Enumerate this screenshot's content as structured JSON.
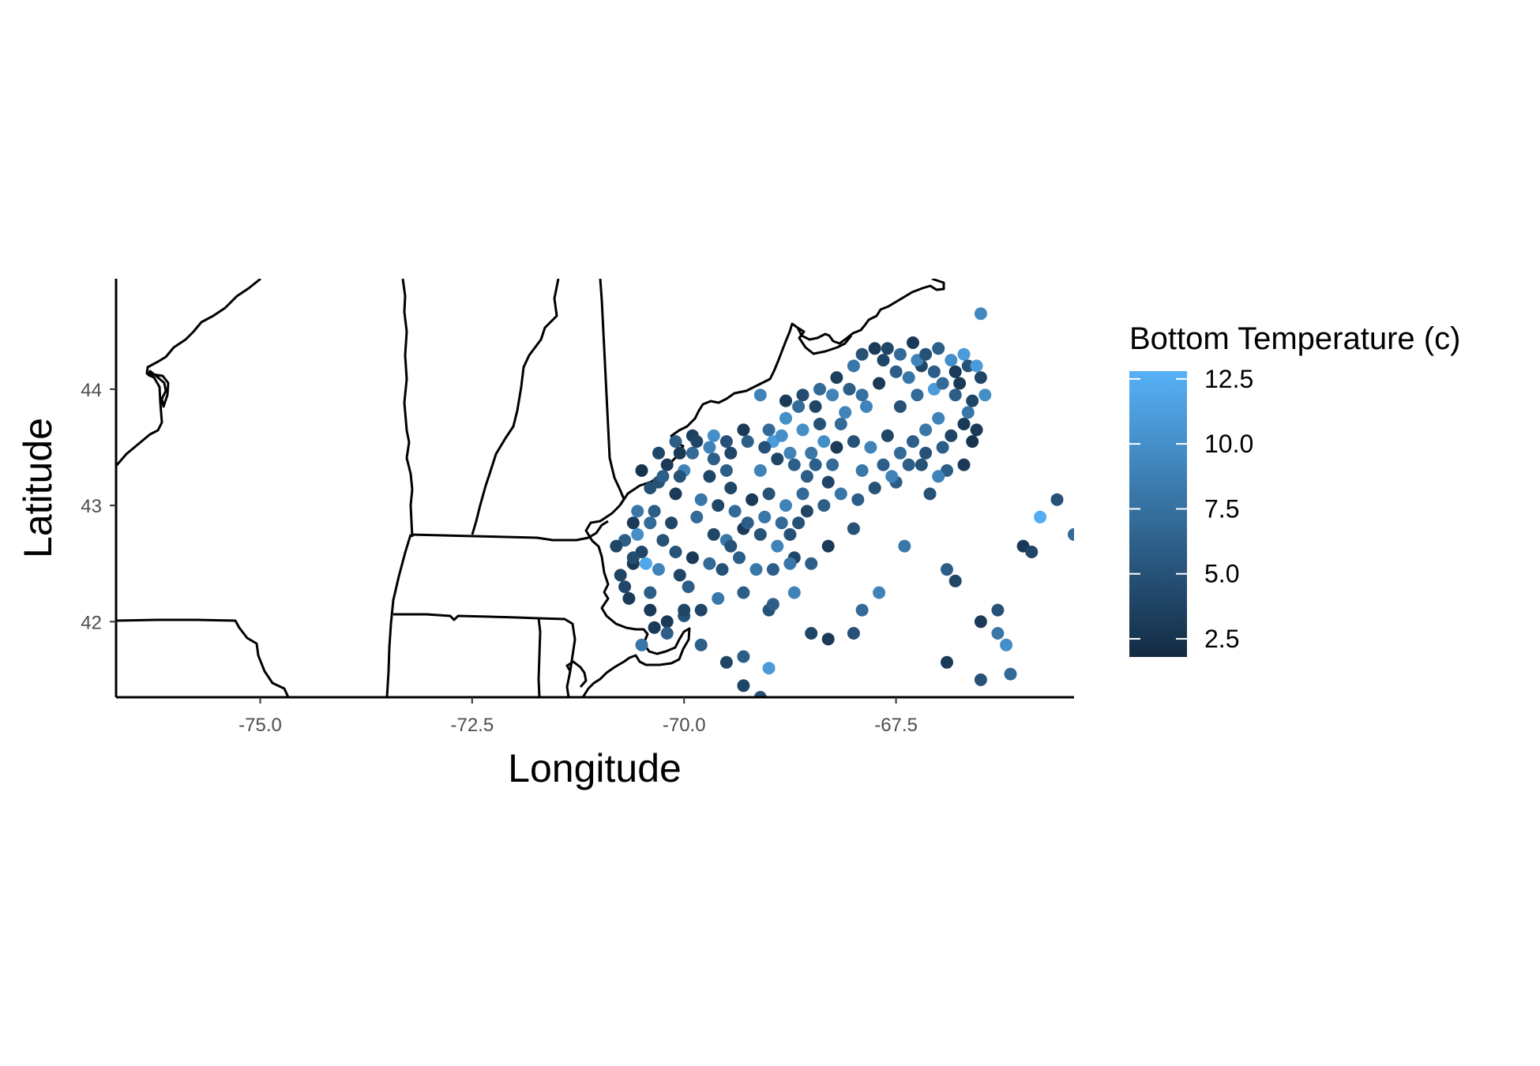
{
  "chart_data": {
    "type": "scatter",
    "xlabel": "Longitude",
    "ylabel": "Latitude",
    "xlim": [
      -76.7,
      -65.4
    ],
    "ylim": [
      41.35,
      44.95
    ],
    "x_ticks": [
      -75.0,
      -72.5,
      -70.0,
      -67.5
    ],
    "x_tick_labels": [
      "-75.0",
      "-72.5",
      "-70.0",
      "-67.5"
    ],
    "y_ticks": [
      42,
      43,
      44
    ],
    "y_tick_labels": [
      "42",
      "43",
      "44"
    ],
    "grid": false,
    "legend": {
      "position": "right",
      "title": "Bottom Temperature (c)",
      "min": 1.8,
      "max": 12.8,
      "breaks": [
        2.5,
        5.0,
        7.5,
        10.0,
        12.5
      ],
      "break_labels": [
        "2.5",
        "5.0",
        "7.5",
        "10.0",
        "12.5"
      ],
      "low_color": "#132B43",
      "high_color": "#56B1F7"
    },
    "points": [
      [
        -66.5,
        44.65,
        9.5
      ],
      [
        -67.6,
        44.35,
        4
      ],
      [
        -67.3,
        44.4,
        3
      ],
      [
        -67.0,
        44.35,
        6
      ],
      [
        -66.7,
        44.3,
        11
      ],
      [
        -66.5,
        44.1,
        4
      ],
      [
        -66.8,
        44.15,
        3
      ],
      [
        -67.9,
        44.3,
        5
      ],
      [
        -68.0,
        44.2,
        8
      ],
      [
        -68.2,
        44.1,
        3.5
      ],
      [
        -68.4,
        44.0,
        7
      ],
      [
        -68.6,
        43.95,
        4.5
      ],
      [
        -68.8,
        43.9,
        3
      ],
      [
        -69.1,
        43.95,
        9
      ],
      [
        -67.2,
        44.2,
        4
      ],
      [
        -67.5,
        44.15,
        6
      ],
      [
        -67.7,
        44.05,
        3
      ],
      [
        -67.9,
        43.95,
        7.5
      ],
      [
        -68.1,
        43.8,
        9
      ],
      [
        -68.4,
        43.7,
        5
      ],
      [
        -68.6,
        43.65,
        10
      ],
      [
        -66.6,
        43.9,
        4
      ],
      [
        -66.8,
        43.95,
        6
      ],
      [
        -67.0,
        43.75,
        9
      ],
      [
        -66.7,
        43.7,
        3
      ],
      [
        -66.6,
        43.55,
        2.5
      ],
      [
        -67.3,
        43.55,
        6
      ],
      [
        -67.6,
        43.6,
        4
      ],
      [
        -67.8,
        43.5,
        9
      ],
      [
        -68.0,
        43.55,
        5
      ],
      [
        -68.2,
        43.5,
        3
      ],
      [
        -68.5,
        43.45,
        8
      ],
      [
        -68.7,
        43.35,
        6
      ],
      [
        -68.9,
        43.4,
        4
      ],
      [
        -69.1,
        43.3,
        9
      ],
      [
        -66.9,
        43.3,
        6
      ],
      [
        -66.7,
        43.35,
        3
      ],
      [
        -67.0,
        43.25,
        9
      ],
      [
        -67.2,
        43.35,
        5
      ],
      [
        -67.5,
        43.2,
        6
      ],
      [
        -67.9,
        43.3,
        8
      ],
      [
        -68.3,
        43.2,
        4
      ],
      [
        -68.6,
        43.1,
        7
      ],
      [
        -68.8,
        43.0,
        9
      ],
      [
        -69.0,
        43.1,
        5
      ],
      [
        -69.2,
        43.05,
        3
      ],
      [
        -69.4,
        42.95,
        7
      ],
      [
        -69.6,
        43.0,
        4
      ],
      [
        -69.8,
        43.05,
        8
      ],
      [
        -70.1,
        43.1,
        3
      ],
      [
        -70.3,
        43.2,
        5
      ],
      [
        -70.5,
        43.3,
        2.5
      ],
      [
        -70.3,
        43.45,
        4
      ],
      [
        -70.1,
        43.55,
        6
      ],
      [
        -69.9,
        43.6,
        3.5
      ],
      [
        -69.7,
        43.5,
        9
      ],
      [
        -69.5,
        43.55,
        5
      ],
      [
        -69.3,
        43.65,
        3
      ],
      [
        -69.0,
        43.65,
        7
      ],
      [
        -68.8,
        43.75,
        10
      ],
      [
        -69.5,
        43.3,
        6
      ],
      [
        -69.7,
        43.25,
        4
      ],
      [
        -70.0,
        43.3,
        9
      ],
      [
        -70.2,
        43.35,
        3
      ],
      [
        -70.4,
        43.15,
        5
      ],
      [
        -70.6,
        42.85,
        3
      ],
      [
        -70.7,
        42.7,
        6
      ],
      [
        -70.5,
        42.6,
        4
      ],
      [
        -70.3,
        42.45,
        9
      ],
      [
        -70.1,
        42.6,
        5
      ],
      [
        -69.9,
        42.55,
        3
      ],
      [
        -69.7,
        42.5,
        7
      ],
      [
        -69.5,
        42.7,
        8
      ],
      [
        -69.3,
        42.8,
        3
      ],
      [
        -69.1,
        42.75,
        5
      ],
      [
        -68.9,
        42.65,
        9
      ],
      [
        -68.7,
        42.55,
        4
      ],
      [
        -68.5,
        42.5,
        6
      ],
      [
        -68.3,
        42.65,
        3
      ],
      [
        -68.0,
        42.8,
        5
      ],
      [
        -70.4,
        42.85,
        7
      ],
      [
        -70.6,
        42.5,
        3
      ],
      [
        -70.7,
        42.3,
        4
      ],
      [
        -70.4,
        42.25,
        6
      ],
      [
        -70.2,
        42.0,
        3
      ],
      [
        -70.0,
        42.05,
        5
      ],
      [
        -69.8,
        42.1,
        4
      ],
      [
        -69.6,
        42.2,
        8
      ],
      [
        -69.3,
        42.25,
        6
      ],
      [
        -69.0,
        42.1,
        5
      ],
      [
        -68.7,
        42.25,
        9
      ],
      [
        -68.5,
        41.9,
        4
      ],
      [
        -68.3,
        41.85,
        3
      ],
      [
        -68.0,
        41.9,
        5
      ],
      [
        -67.9,
        42.1,
        7
      ],
      [
        -67.7,
        42.25,
        9
      ],
      [
        -67.4,
        42.65,
        8
      ],
      [
        -67.1,
        43.1,
        5
      ],
      [
        -66.9,
        42.45,
        6
      ],
      [
        -66.8,
        42.35,
        4
      ],
      [
        -66.5,
        42.0,
        3
      ],
      [
        -66.3,
        42.1,
        5
      ],
      [
        -66.3,
        41.9,
        8
      ],
      [
        -66.2,
        41.8,
        10
      ],
      [
        -66.15,
        41.55,
        7
      ],
      [
        -66.5,
        41.5,
        5
      ],
      [
        -66.9,
        41.65,
        3
      ],
      [
        -66.0,
        42.65,
        3
      ],
      [
        -65.9,
        42.6,
        4
      ],
      [
        -65.8,
        42.9,
        12.5
      ],
      [
        -65.6,
        43.05,
        5
      ],
      [
        -65.4,
        42.75,
        7
      ],
      [
        -69.8,
        41.8,
        6
      ],
      [
        -69.5,
        41.65,
        4
      ],
      [
        -69.3,
        41.7,
        6
      ],
      [
        -69.0,
        41.6,
        11
      ],
      [
        -69.3,
        41.45,
        4
      ],
      [
        -69.1,
        41.35,
        5
      ],
      [
        -70.5,
        41.8,
        8
      ],
      [
        -70.2,
        41.9,
        6
      ],
      [
        -70.8,
        42.65,
        4
      ],
      [
        -70.55,
        42.75,
        10
      ],
      [
        -70.6,
        42.55,
        4.5
      ],
      [
        -70.4,
        42.1,
        3
      ],
      [
        -70.0,
        42.1,
        4
      ],
      [
        -69.9,
        43.45,
        7
      ],
      [
        -70.05,
        43.25,
        5
      ],
      [
        -69.65,
        43.4,
        6
      ],
      [
        -69.45,
        43.15,
        4
      ],
      [
        -68.95,
        43.55,
        11
      ],
      [
        -68.75,
        43.45,
        9
      ],
      [
        -68.55,
        43.25,
        6
      ],
      [
        -68.35,
        43.55,
        10
      ],
      [
        -68.15,
        43.7,
        7
      ],
      [
        -67.85,
        43.85,
        9
      ],
      [
        -67.45,
        43.85,
        5
      ],
      [
        -67.25,
        43.95,
        7
      ],
      [
        -67.05,
        44.0,
        11
      ],
      [
        -66.75,
        44.05,
        3
      ],
      [
        -66.45,
        43.95,
        10
      ],
      [
        -66.85,
        43.6,
        4
      ],
      [
        -67.15,
        43.65,
        8
      ],
      [
        -67.45,
        43.45,
        7
      ],
      [
        -67.65,
        43.35,
        6
      ],
      [
        -68.25,
        43.35,
        7
      ],
      [
        -68.45,
        43.35,
        6
      ],
      [
        -68.65,
        42.85,
        5
      ],
      [
        -68.85,
        42.85,
        7
      ],
      [
        -69.05,
        42.9,
        8
      ],
      [
        -69.25,
        42.85,
        6
      ],
      [
        -69.45,
        42.65,
        5
      ],
      [
        -69.65,
        42.75,
        4
      ],
      [
        -69.85,
        42.9,
        7
      ],
      [
        -70.15,
        42.85,
        4
      ],
      [
        -70.35,
        42.95,
        6
      ],
      [
        -70.55,
        42.95,
        8
      ],
      [
        -70.45,
        42.5,
        12
      ],
      [
        -70.25,
        42.7,
        5
      ],
      [
        -70.05,
        42.4,
        4
      ],
      [
        -69.95,
        42.3,
        6
      ],
      [
        -69.55,
        42.45,
        5
      ],
      [
        -69.35,
        42.55,
        6
      ],
      [
        -68.95,
        42.45,
        6
      ],
      [
        -68.75,
        42.75,
        5
      ],
      [
        -68.55,
        42.95,
        4
      ],
      [
        -68.35,
        43.0,
        6
      ],
      [
        -68.15,
        43.1,
        8
      ],
      [
        -67.95,
        43.05,
        6
      ],
      [
        -67.75,
        43.15,
        5
      ],
      [
        -67.55,
        43.25,
        9
      ],
      [
        -67.35,
        43.35,
        6
      ],
      [
        -67.15,
        43.45,
        5
      ],
      [
        -66.95,
        43.5,
        6
      ],
      [
        -66.65,
        43.8,
        8
      ],
      [
        -68.05,
        44.0,
        6
      ],
      [
        -68.25,
        43.95,
        9
      ],
      [
        -68.45,
        43.85,
        4
      ],
      [
        -68.65,
        43.85,
        7
      ],
      [
        -68.85,
        43.6,
        10
      ],
      [
        -69.05,
        43.5,
        5
      ],
      [
        -69.25,
        43.55,
        6
      ],
      [
        -69.45,
        43.45,
        4
      ],
      [
        -69.65,
        43.6,
        10
      ],
      [
        -69.85,
        43.55,
        4
      ],
      [
        -70.05,
        43.45,
        3
      ],
      [
        -70.25,
        43.25,
        6
      ],
      [
        -67.65,
        44.25,
        4
      ],
      [
        -67.45,
        44.3,
        7
      ],
      [
        -67.25,
        44.25,
        9
      ],
      [
        -67.05,
        44.15,
        6
      ],
      [
        -66.85,
        44.25,
        10
      ],
      [
        -66.65,
        44.2,
        5
      ],
      [
        -67.75,
        44.35,
        3
      ],
      [
        -67.35,
        44.1,
        8
      ],
      [
        -67.15,
        44.3,
        5
      ],
      [
        -66.95,
        44.05,
        7
      ],
      [
        -66.55,
        44.2,
        11
      ],
      [
        -66.55,
        43.65,
        3
      ],
      [
        -69.15,
        42.45,
        8
      ],
      [
        -68.95,
        42.15,
        6
      ],
      [
        -68.75,
        42.5,
        8
      ],
      [
        -70.75,
        42.4,
        4
      ],
      [
        -70.65,
        42.2,
        3
      ],
      [
        -70.35,
        41.95,
        3
      ]
    ]
  }
}
